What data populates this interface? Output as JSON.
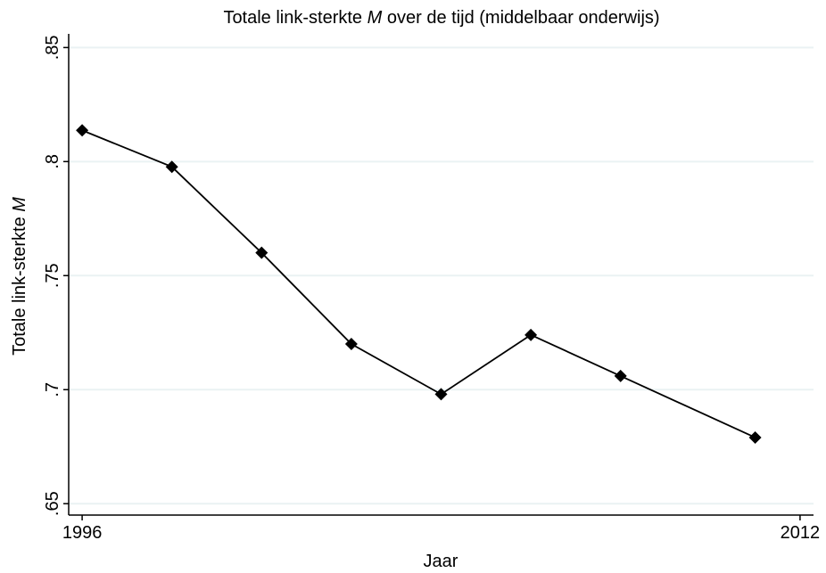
{
  "chart_data": {
    "type": "line",
    "title": [
      "Totale link-sterkte",
      "M",
      "over de tijd (middelbaar onderwijs)"
    ],
    "x_label": "Jaar",
    "y_label": [
      "Totale link-sterkte",
      "M"
    ],
    "x": [
      1996,
      1998,
      2000,
      2002,
      2004,
      2006,
      2008,
      2011
    ],
    "series": [
      {
        "color": "#000000",
        "values": [
          0.8137,
          0.7977,
          0.76,
          0.72,
          0.698,
          0.724,
          0.706,
          0.679
        ]
      }
    ],
    "xlim": [
      1995.7,
      2012.3
    ],
    "xticks": [
      1996,
      2012
    ],
    "ylim": [
      0.645,
      0.856
    ],
    "yticks": [
      {
        "value": 0.65,
        "label": ".65"
      },
      {
        "value": 0.7,
        "label": ".7"
      },
      {
        "value": 0.75,
        "label": ".75"
      },
      {
        "value": 0.8,
        "label": ".8"
      },
      {
        "value": 0.85,
        "label": ".85"
      }
    ],
    "grid": true,
    "grid_color": "#eaf2f3"
  }
}
